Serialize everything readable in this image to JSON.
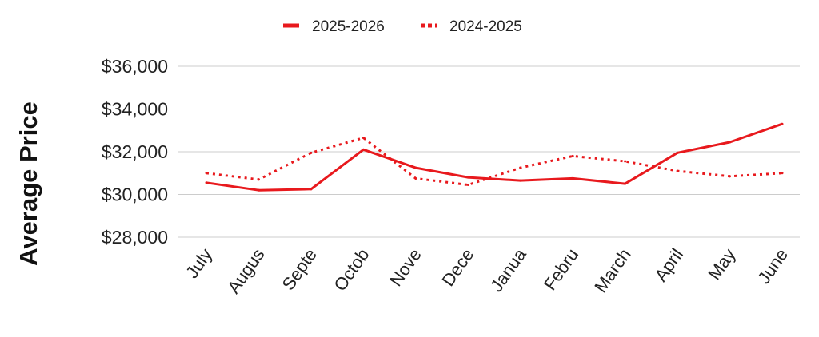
{
  "chart_data": {
    "type": "line",
    "title": "",
    "xlabel": "",
    "ylabel": "Average Price",
    "categories": [
      "July",
      "Augus",
      "Septe",
      "Octob",
      "Nove",
      "Dece",
      "Janua",
      "Febru",
      "March",
      "April",
      "May",
      "June"
    ],
    "series": [
      {
        "name": "2025-2026",
        "style": "solid",
        "color": "#e8191d",
        "values": [
          30550,
          30200,
          30250,
          32100,
          31250,
          30800,
          30650,
          30750,
          30500,
          31950,
          32450,
          33300
        ]
      },
      {
        "name": "2024-2025",
        "style": "dotted",
        "color": "#e8191d",
        "values": [
          31000,
          30700,
          31950,
          32650,
          30750,
          30450,
          31250,
          31800,
          31550,
          31100,
          30850,
          31000
        ]
      }
    ],
    "yticks": [
      28000,
      30000,
      32000,
      34000,
      36000
    ],
    "ytick_labels": [
      "$28,000",
      "$30,000",
      "$32,000",
      "$34,000",
      "$36,000"
    ],
    "ylim": [
      28000,
      36000
    ],
    "grid": "horizontal",
    "legend_position": "top-center"
  }
}
